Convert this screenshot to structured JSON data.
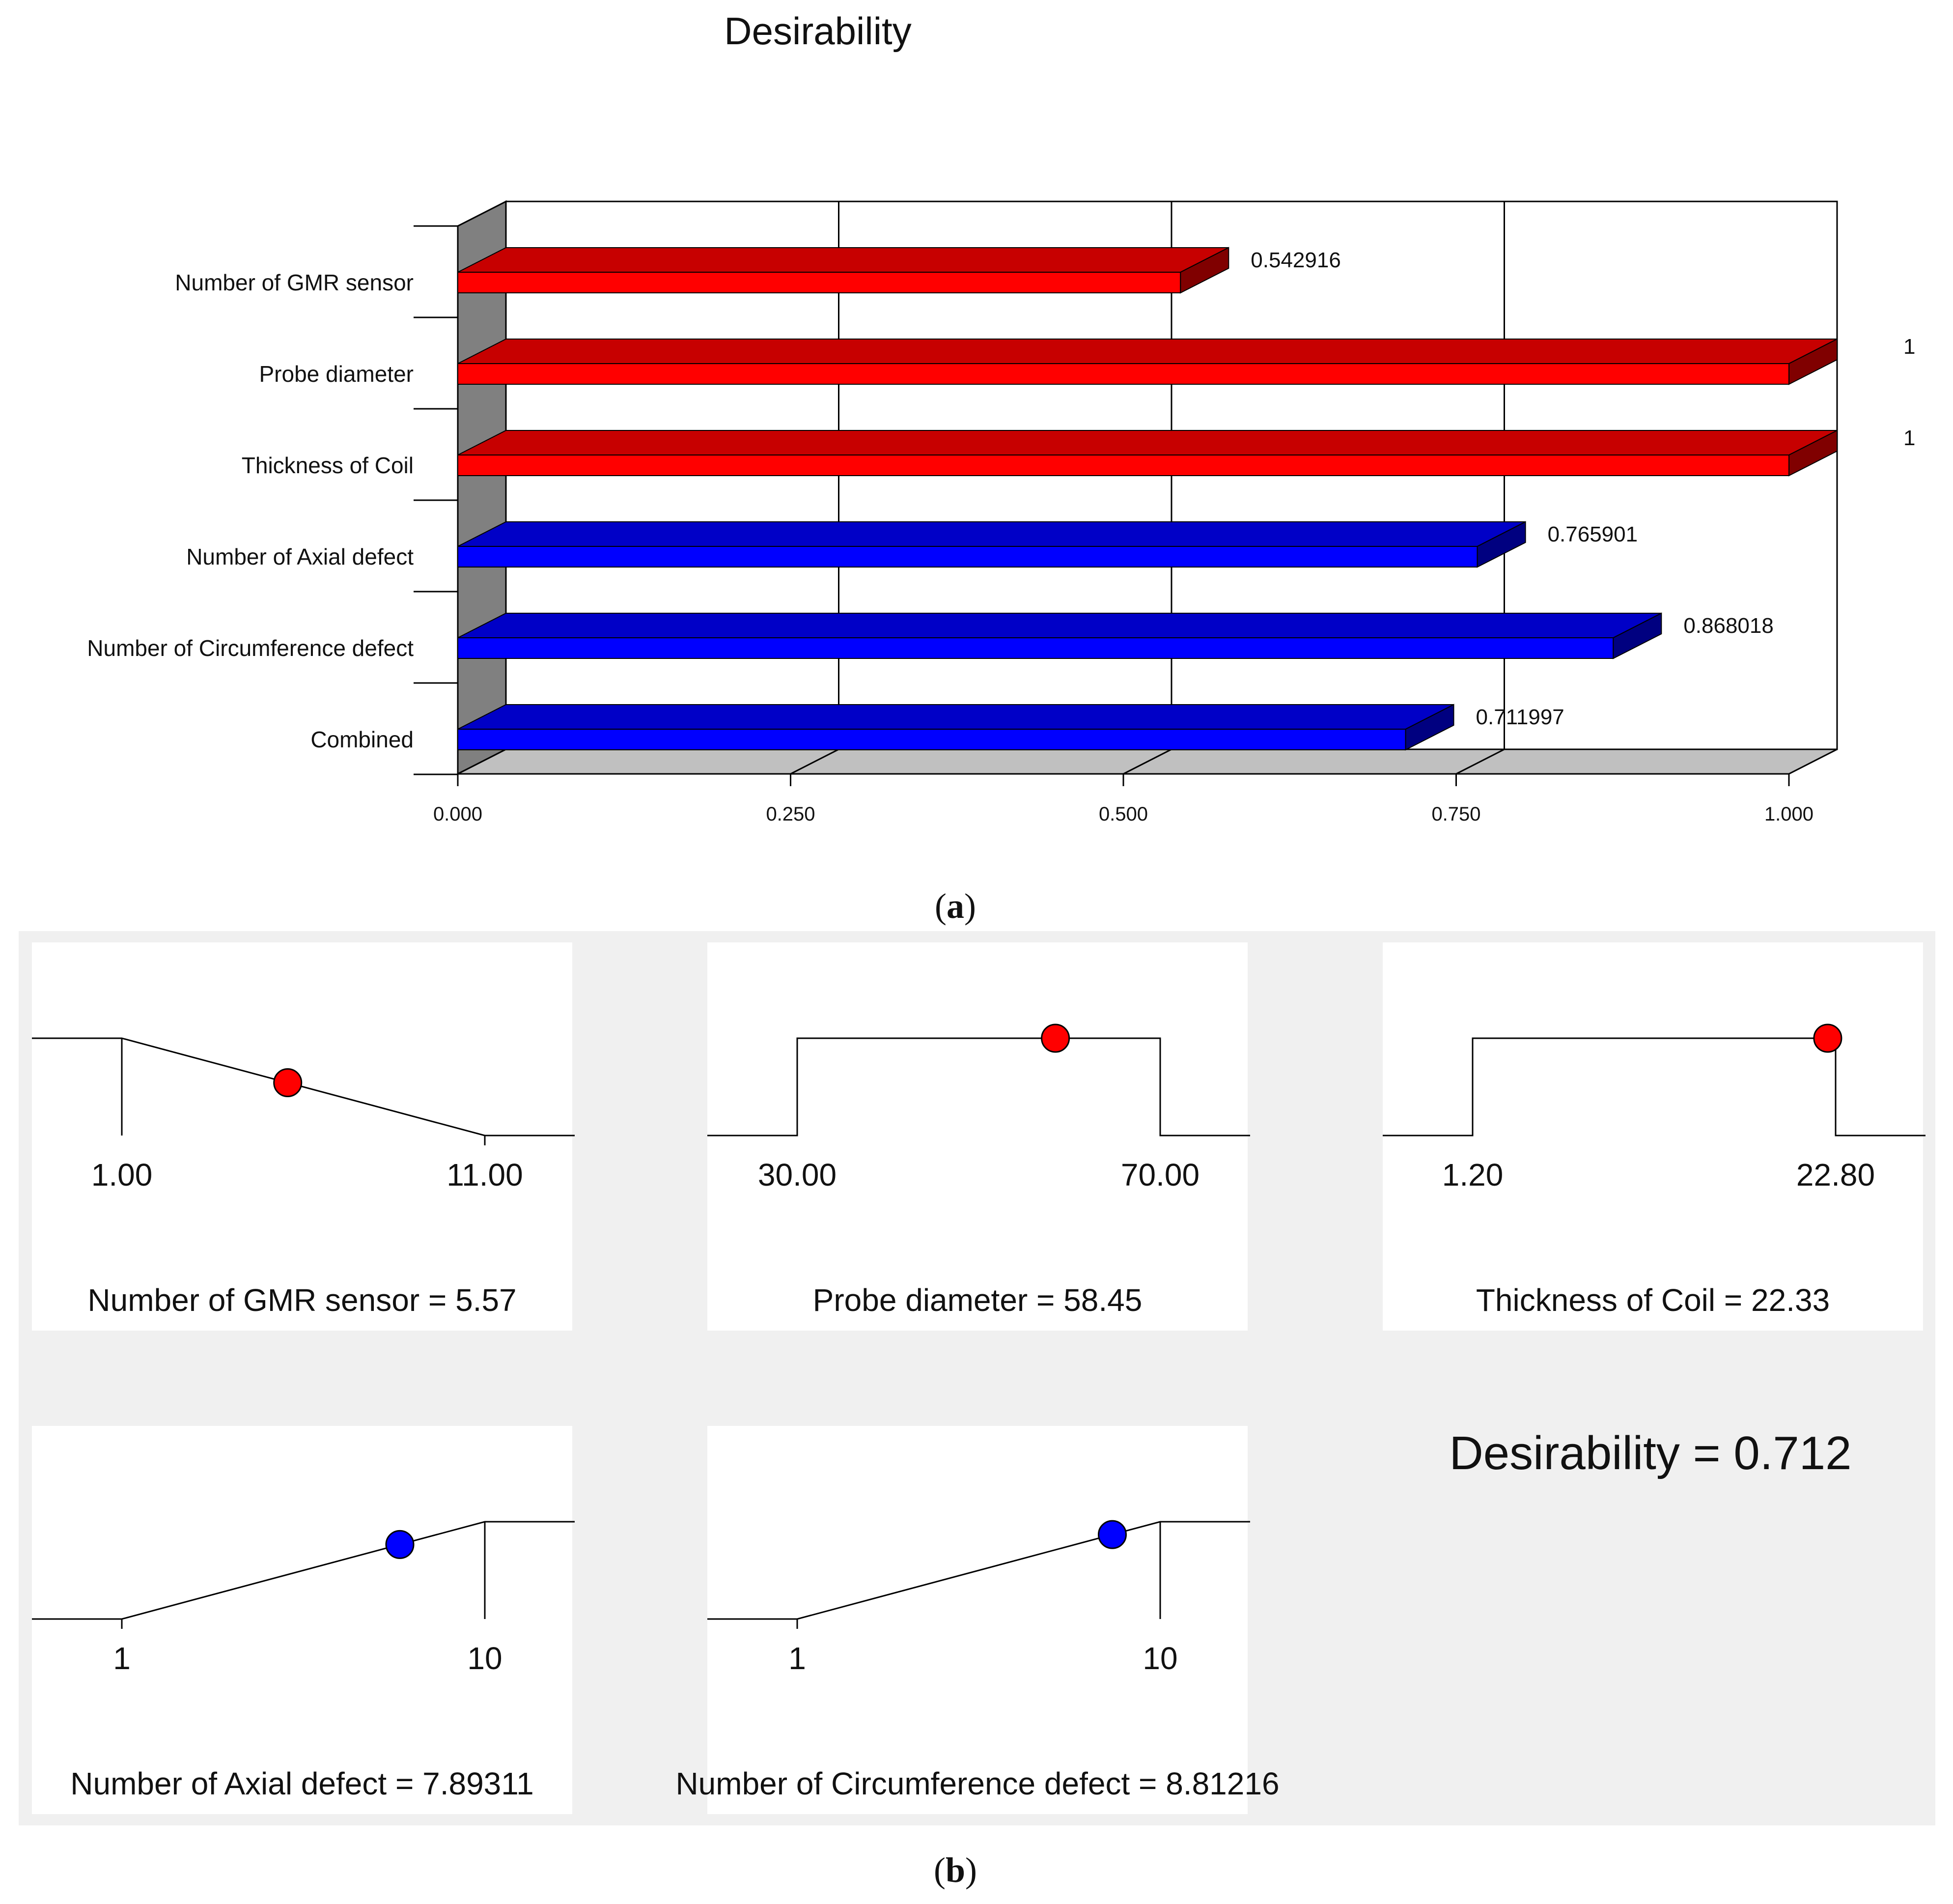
{
  "chart_data": [
    {
      "type": "bar",
      "orientation": "horizontal",
      "title": "Desirability",
      "caption": "a",
      "categories": [
        "Number of GMR sensor",
        "Probe diameter",
        "Thickness of Coil",
        "Number of Axial defect",
        "Number of Circumference defect",
        "Combined"
      ],
      "values": [
        0.542916,
        1,
        1,
        0.765901,
        0.868018,
        0.711997
      ],
      "value_labels": [
        "0.542916",
        "1",
        "1",
        "0.765901",
        "0.868018",
        "0.711997"
      ],
      "bar_colors": [
        "#ff0000",
        "#ff0000",
        "#ff0000",
        "#0000ff",
        "#0000ff",
        "#0000ff"
      ],
      "xlim": [
        0,
        1
      ],
      "xticks": [
        0,
        0.25,
        0.5,
        0.75,
        1
      ],
      "xtick_labels": [
        "0.000",
        "0.250",
        "0.500",
        "0.750",
        "1.000"
      ]
    },
    {
      "type": "line",
      "caption": "b",
      "total_label": "Desirability = 0.712",
      "total": 0.712,
      "panels": [
        {
          "label": "Number of GMR sensor = 5.57",
          "low_label": "1.00",
          "high_label": "11.00",
          "low": 1,
          "high": 11,
          "value": 5.57,
          "shape": "decreasing",
          "dot_color": "#ff0000"
        },
        {
          "label": "Probe diameter = 58.45",
          "low_label": "30.00",
          "high_label": "70.00",
          "low": 30,
          "high": 70,
          "value": 58.45,
          "shape": "range",
          "dot_color": "#ff0000"
        },
        {
          "label": "Thickness of Coil = 22.33",
          "low_label": "1.20",
          "high_label": "22.80",
          "low": 1.2,
          "high": 22.8,
          "value": 22.33,
          "shape": "range",
          "dot_color": "#ff0000"
        },
        {
          "label": "Number of Axial defect = 7.89311",
          "low_label": "1",
          "high_label": "10",
          "low": 1,
          "high": 10,
          "value": 7.89311,
          "shape": "increasing",
          "dot_color": "#0000ff"
        },
        {
          "label": "Number of Circumference defect = 8.81216",
          "low_label": "1",
          "high_label": "10",
          "low": 1,
          "high": 10,
          "value": 8.81216,
          "shape": "increasing",
          "dot_color": "#0000ff"
        }
      ]
    }
  ],
  "colors": {
    "panel_background": "#f0f0f0",
    "wall": "#808080",
    "floor": "#c0c0c0"
  }
}
